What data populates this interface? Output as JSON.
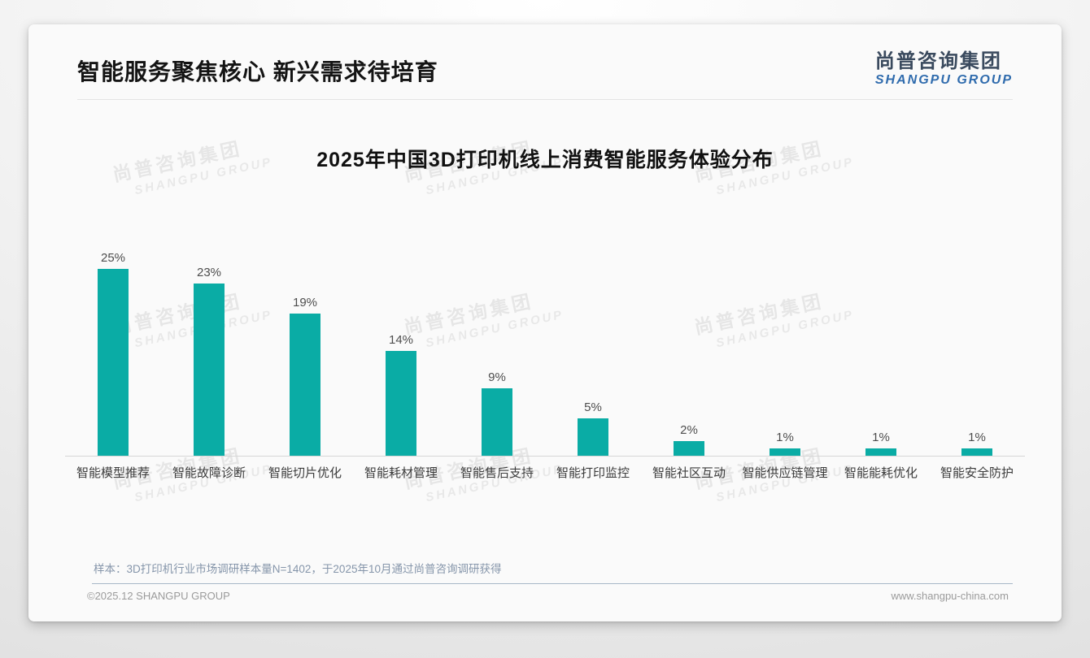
{
  "header": {
    "title": "智能服务聚焦核心 新兴需求待培育",
    "logo_cn": "尚普咨询集团",
    "logo_en": "SHANGPU GROUP"
  },
  "watermark": {
    "cn": "尚普咨询集团",
    "en": "SHANGPU GROUP"
  },
  "chart_data": {
    "type": "bar",
    "title": "2025年中国3D打印机线上消费智能服务体验分布",
    "categories": [
      "智能模型推荐",
      "智能故障诊断",
      "智能切片优化",
      "智能耗材管理",
      "智能售后支持",
      "智能打印监控",
      "智能社区互动",
      "智能供应链管理",
      "智能能耗优化",
      "智能安全防护"
    ],
    "values": [
      25,
      23,
      19,
      14,
      9,
      5,
      2,
      1,
      1,
      1
    ],
    "data_labels": [
      "25%",
      "23%",
      "19%",
      "14%",
      "9%",
      "5%",
      "2%",
      "1%",
      "1%",
      "1%"
    ],
    "unit": "%",
    "xlabel": "",
    "ylabel": "",
    "ylim": [
      0,
      27
    ],
    "grid": false,
    "legend": false,
    "bar_color": "#0aaca5"
  },
  "footnote": "样本：3D打印机行业市场调研样本量N=1402，于2025年10月通过尚普咨询调研获得",
  "footer": {
    "left": "©2025.12 SHANGPU GROUP",
    "right": "www.shangpu-china.com"
  },
  "colors": {
    "bar": "#0aaca5",
    "logo_cn": "#3a4a5e",
    "logo_en": "#2f6bad",
    "footnote": "#8595aa",
    "footer_text": "#9b9b9b"
  }
}
